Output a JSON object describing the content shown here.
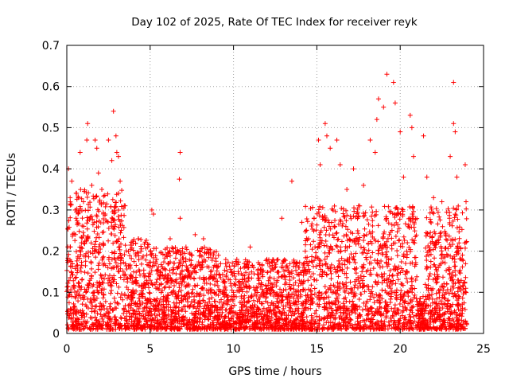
{
  "chart_data": {
    "type": "scatter",
    "title": "Day 102 of 2025, Rate Of TEC Index for receiver reyk",
    "xlabel": "GPS time / hours",
    "ylabel": "ROTI / TECUs",
    "xlim": [
      0,
      25
    ],
    "ylim": [
      0,
      0.7
    ],
    "xticks": [
      0,
      5,
      10,
      15,
      20,
      25
    ],
    "yticks": [
      0,
      0.1,
      0.2,
      0.3,
      0.4,
      0.5,
      0.6,
      0.7
    ],
    "grid": true,
    "legend": "none",
    "marker": "+",
    "color": "#ff0000",
    "series": [
      {
        "values_note": "",
        "points": [
          [
            0.1,
            0.4
          ],
          [
            0.2,
            0.33
          ],
          [
            0.3,
            0.37
          ],
          [
            0.5,
            0.3
          ],
          [
            0.7,
            0.33
          ],
          [
            0.8,
            0.44
          ],
          [
            1.0,
            0.32
          ],
          [
            1.2,
            0.47
          ],
          [
            1.25,
            0.51
          ],
          [
            1.5,
            0.36
          ],
          [
            1.7,
            0.47
          ],
          [
            1.8,
            0.45
          ],
          [
            1.9,
            0.39
          ],
          [
            2.1,
            0.35
          ],
          [
            2.3,
            0.29
          ],
          [
            2.5,
            0.47
          ],
          [
            2.7,
            0.42
          ],
          [
            2.8,
            0.54
          ],
          [
            2.95,
            0.48
          ],
          [
            3.0,
            0.44
          ],
          [
            3.1,
            0.43
          ],
          [
            3.2,
            0.37
          ],
          [
            3.5,
            0.31
          ],
          [
            4.3,
            0.23
          ],
          [
            5.1,
            0.3
          ],
          [
            5.2,
            0.29
          ],
          [
            6.2,
            0.23
          ],
          [
            6.8,
            0.44
          ],
          [
            6.75,
            0.375
          ],
          [
            6.8,
            0.28
          ],
          [
            7.7,
            0.24
          ],
          [
            8.2,
            0.23
          ],
          [
            9.1,
            0.19
          ],
          [
            10.2,
            0.18
          ],
          [
            11.0,
            0.21
          ],
          [
            12.0,
            0.18
          ],
          [
            12.9,
            0.28
          ],
          [
            13.5,
            0.37
          ],
          [
            14.1,
            0.27
          ],
          [
            14.5,
            0.23
          ],
          [
            15.1,
            0.47
          ],
          [
            15.2,
            0.41
          ],
          [
            15.5,
            0.51
          ],
          [
            15.6,
            0.48
          ],
          [
            15.8,
            0.45
          ],
          [
            16.2,
            0.47
          ],
          [
            16.4,
            0.41
          ],
          [
            16.8,
            0.35
          ],
          [
            17.2,
            0.4
          ],
          [
            17.5,
            0.31
          ],
          [
            17.8,
            0.36
          ],
          [
            18.2,
            0.47
          ],
          [
            18.5,
            0.44
          ],
          [
            18.6,
            0.52
          ],
          [
            18.7,
            0.57
          ],
          [
            19.0,
            0.55
          ],
          [
            19.2,
            0.63
          ],
          [
            19.6,
            0.61
          ],
          [
            19.7,
            0.56
          ],
          [
            20.0,
            0.49
          ],
          [
            20.2,
            0.38
          ],
          [
            20.6,
            0.53
          ],
          [
            20.7,
            0.5
          ],
          [
            20.8,
            0.43
          ],
          [
            21.4,
            0.48
          ],
          [
            21.6,
            0.38
          ],
          [
            22.0,
            0.33
          ],
          [
            22.5,
            0.32
          ],
          [
            23.0,
            0.43
          ],
          [
            23.2,
            0.61
          ],
          [
            23.2,
            0.51
          ],
          [
            23.3,
            0.49
          ],
          [
            23.4,
            0.38
          ],
          [
            23.9,
            0.41
          ],
          [
            23.95,
            0.32
          ]
        ]
      }
    ]
  }
}
